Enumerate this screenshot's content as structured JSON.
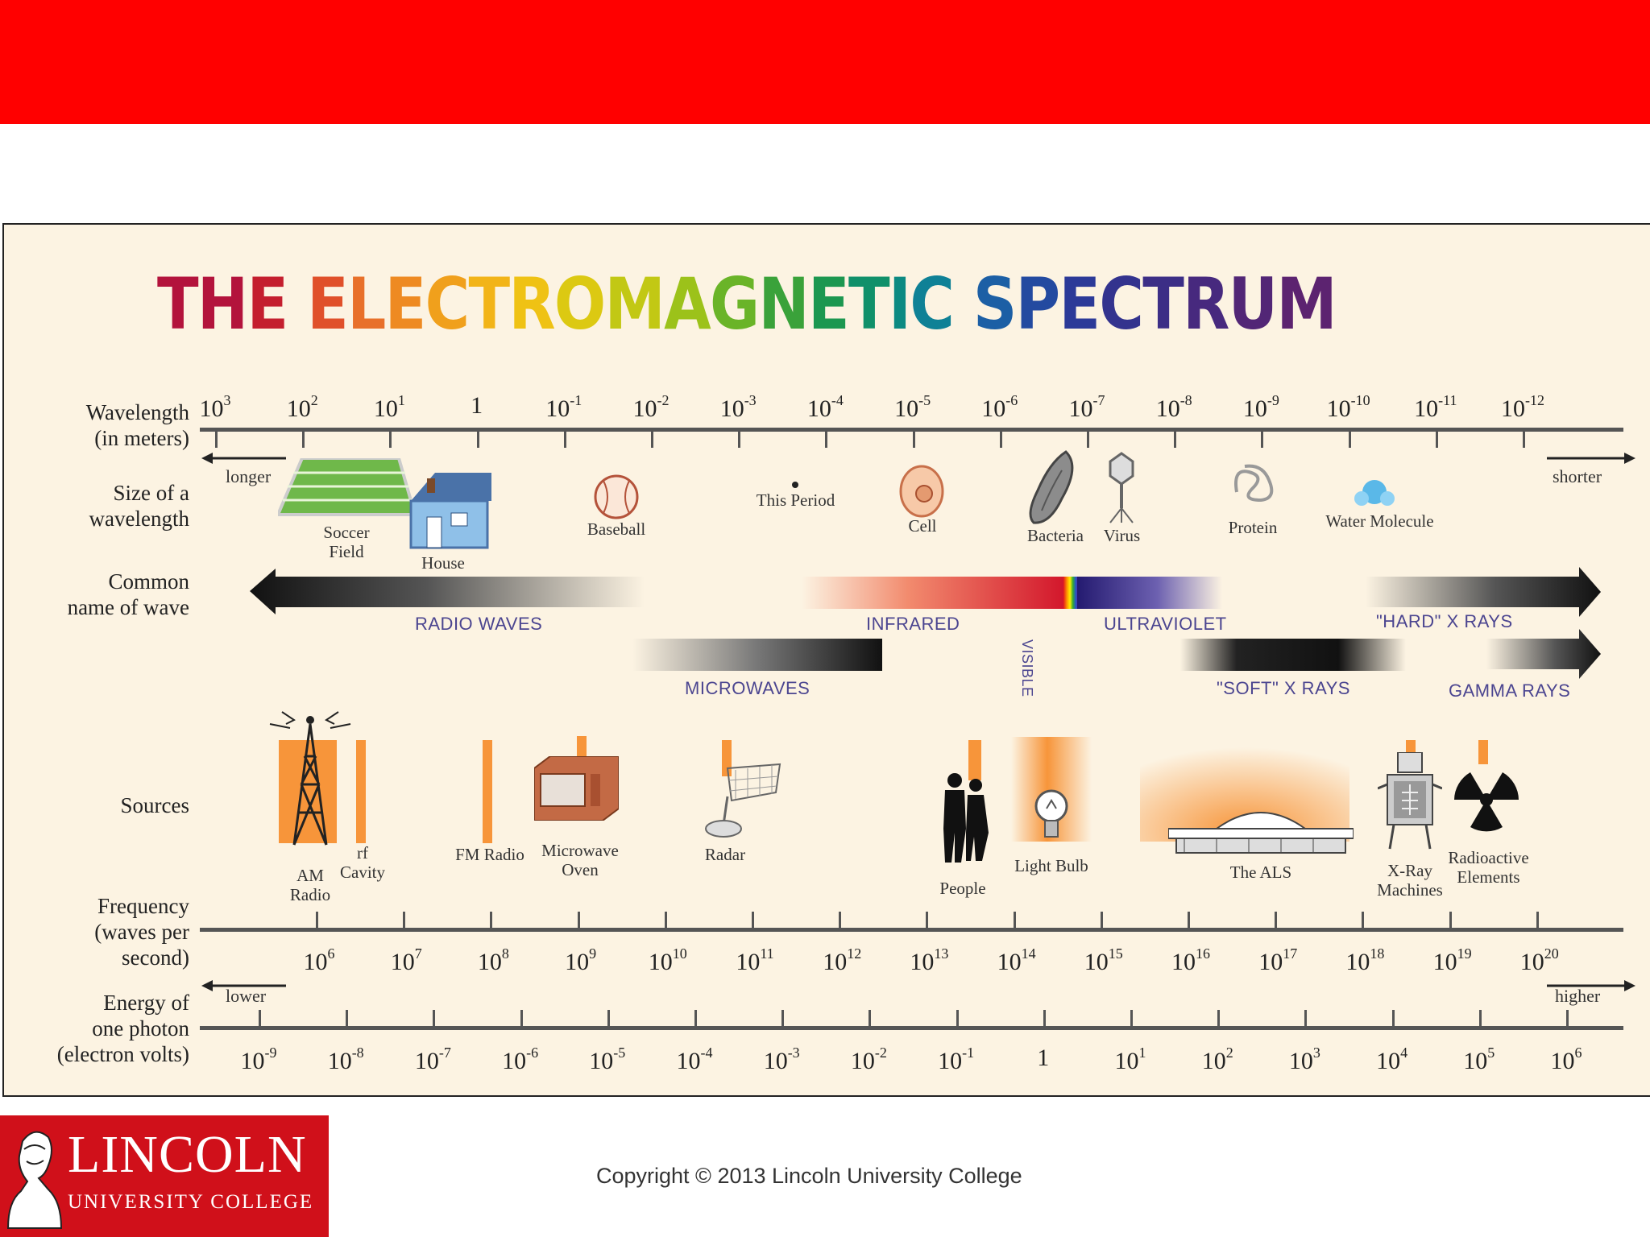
{
  "slide": {
    "band_color": "#ff0000",
    "copyright": "Copyright © 2013 Lincoln University College"
  },
  "logo": {
    "name": "LINCOLN",
    "subtitle": "UNIVERSITY COLLEGE",
    "color": "#d0101a"
  },
  "diagram": {
    "title_letters": [
      {
        "ch": "T",
        "color": "#b3133c"
      },
      {
        "ch": "H",
        "color": "#b3133c"
      },
      {
        "ch": "E",
        "color": "#c41e2e"
      },
      {
        "ch": " ",
        "color": "#000"
      },
      {
        "ch": "E",
        "color": "#e0502a"
      },
      {
        "ch": "L",
        "color": "#e8702a"
      },
      {
        "ch": "E",
        "color": "#ee8a22"
      },
      {
        "ch": "C",
        "color": "#f0a01c"
      },
      {
        "ch": "T",
        "color": "#f2b418"
      },
      {
        "ch": "R",
        "color": "#efc214"
      },
      {
        "ch": "O",
        "color": "#dcc912"
      },
      {
        "ch": "M",
        "color": "#c2c814"
      },
      {
        "ch": "A",
        "color": "#9cc21a"
      },
      {
        "ch": "G",
        "color": "#6ab428"
      },
      {
        "ch": "N",
        "color": "#3aa23a"
      },
      {
        "ch": "E",
        "color": "#1c9750"
      },
      {
        "ch": "T",
        "color": "#10906a"
      },
      {
        "ch": "I",
        "color": "#0c8a82"
      },
      {
        "ch": "C",
        "color": "#0f8196"
      },
      {
        "ch": " ",
        "color": "#000"
      },
      {
        "ch": "S",
        "color": "#1c5fa5"
      },
      {
        "ch": "P",
        "color": "#234aa0"
      },
      {
        "ch": "E",
        "color": "#2c3a98"
      },
      {
        "ch": "C",
        "color": "#33338e"
      },
      {
        "ch": "T",
        "color": "#3c2e86"
      },
      {
        "ch": "R",
        "color": "#47297e"
      },
      {
        "ch": "U",
        "color": "#522676"
      },
      {
        "ch": "M",
        "color": "#5c2370"
      }
    ],
    "row_labels": {
      "wavelength": "Wavelength\n(in meters)",
      "size": "Size of a\nwavelength",
      "common": "Common\nname of wave",
      "sources": "Sources",
      "frequency": "Frequency\n(waves per\nsecond)",
      "energy": "Energy of\none photon\n(electron volts)"
    },
    "wavelength_ticks": [
      {
        "base": "10",
        "exp": "3"
      },
      {
        "base": "10",
        "exp": "2"
      },
      {
        "base": "10",
        "exp": "1"
      },
      {
        "base": "1",
        "exp": ""
      },
      {
        "base": "10",
        "exp": "-1"
      },
      {
        "base": "10",
        "exp": "-2"
      },
      {
        "base": "10",
        "exp": "-3"
      },
      {
        "base": "10",
        "exp": "-4"
      },
      {
        "base": "10",
        "exp": "-5"
      },
      {
        "base": "10",
        "exp": "-6"
      },
      {
        "base": "10",
        "exp": "-7"
      },
      {
        "base": "10",
        "exp": "-8"
      },
      {
        "base": "10",
        "exp": "-9"
      },
      {
        "base": "10",
        "exp": "-10"
      },
      {
        "base": "10",
        "exp": "-11"
      },
      {
        "base": "10",
        "exp": "-12"
      }
    ],
    "frequency_ticks": [
      {
        "base": "10",
        "exp": "6"
      },
      {
        "base": "10",
        "exp": "7"
      },
      {
        "base": "10",
        "exp": "8"
      },
      {
        "base": "10",
        "exp": "9"
      },
      {
        "base": "10",
        "exp": "10"
      },
      {
        "base": "10",
        "exp": "11"
      },
      {
        "base": "10",
        "exp": "12"
      },
      {
        "base": "10",
        "exp": "13"
      },
      {
        "base": "10",
        "exp": "14"
      },
      {
        "base": "10",
        "exp": "15"
      },
      {
        "base": "10",
        "exp": "16"
      },
      {
        "base": "10",
        "exp": "17"
      },
      {
        "base": "10",
        "exp": "18"
      },
      {
        "base": "10",
        "exp": "19"
      },
      {
        "base": "10",
        "exp": "20"
      }
    ],
    "energy_ticks": [
      {
        "base": "10",
        "exp": "-9"
      },
      {
        "base": "10",
        "exp": "-8"
      },
      {
        "base": "10",
        "exp": "-7"
      },
      {
        "base": "10",
        "exp": "-6"
      },
      {
        "base": "10",
        "exp": "-5"
      },
      {
        "base": "10",
        "exp": "-4"
      },
      {
        "base": "10",
        "exp": "-3"
      },
      {
        "base": "10",
        "exp": "-2"
      },
      {
        "base": "10",
        "exp": "-1"
      },
      {
        "base": "1",
        "exp": ""
      },
      {
        "base": "10",
        "exp": "1"
      },
      {
        "base": "10",
        "exp": "2"
      },
      {
        "base": "10",
        "exp": "3"
      },
      {
        "base": "10",
        "exp": "4"
      },
      {
        "base": "10",
        "exp": "5"
      },
      {
        "base": "10",
        "exp": "6"
      }
    ],
    "arrows": {
      "longer": "longer",
      "shorter": "shorter",
      "lower": "lower",
      "higher": "higher"
    },
    "size_items": {
      "soccer": "Soccer\nField",
      "house": "House",
      "baseball": "Baseball",
      "period": "This Period",
      "cell": "Cell",
      "bacteria": "Bacteria",
      "virus": "Virus",
      "protein": "Protein",
      "water": "Water Molecule"
    },
    "wave_names": {
      "radio": "RADIO WAVES",
      "microwaves": "MICROWAVES",
      "infrared": "INFRARED",
      "visible": "VISIBLE",
      "ultraviolet": "ULTRAVIOLET",
      "soft_xrays": "\"SOFT\" X RAYS",
      "hard_xrays": "\"HARD\" X RAYS",
      "gamma": "GAMMA RAYS"
    },
    "sources": {
      "am": "AM\nRadio",
      "rf": "rf\nCavity",
      "fm": "FM Radio",
      "microwave": "Microwave\nOven",
      "radar": "Radar",
      "people": "People",
      "bulb": "Light Bulb",
      "als": "The ALS",
      "xray": "X-Ray\nMachines",
      "radioactive": "Radioactive\nElements"
    }
  }
}
